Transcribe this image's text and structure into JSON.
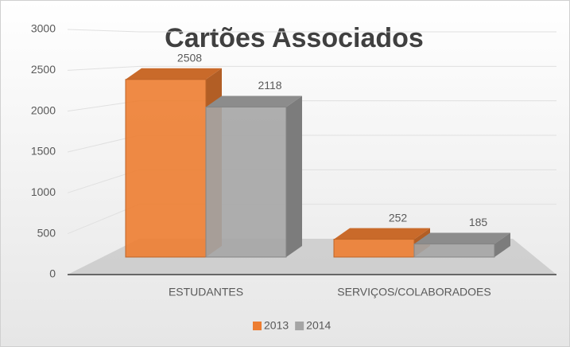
{
  "chart_data": {
    "type": "bar",
    "title": "Cartões Associados",
    "categories": [
      "ESTUDANTES",
      "SERVIÇOS/COLABORADOES"
    ],
    "series": [
      {
        "name": "2013",
        "color": "#ED7D31",
        "values": [
          2508,
          252
        ]
      },
      {
        "name": "2014",
        "color": "#A5A5A5",
        "values": [
          2118,
          185
        ]
      }
    ],
    "ylim": [
      0,
      3000
    ],
    "yticks": [
      0,
      500,
      1000,
      1500,
      2000,
      2500,
      3000
    ],
    "grid": true,
    "legend": "bottom",
    "data_labels": true
  }
}
